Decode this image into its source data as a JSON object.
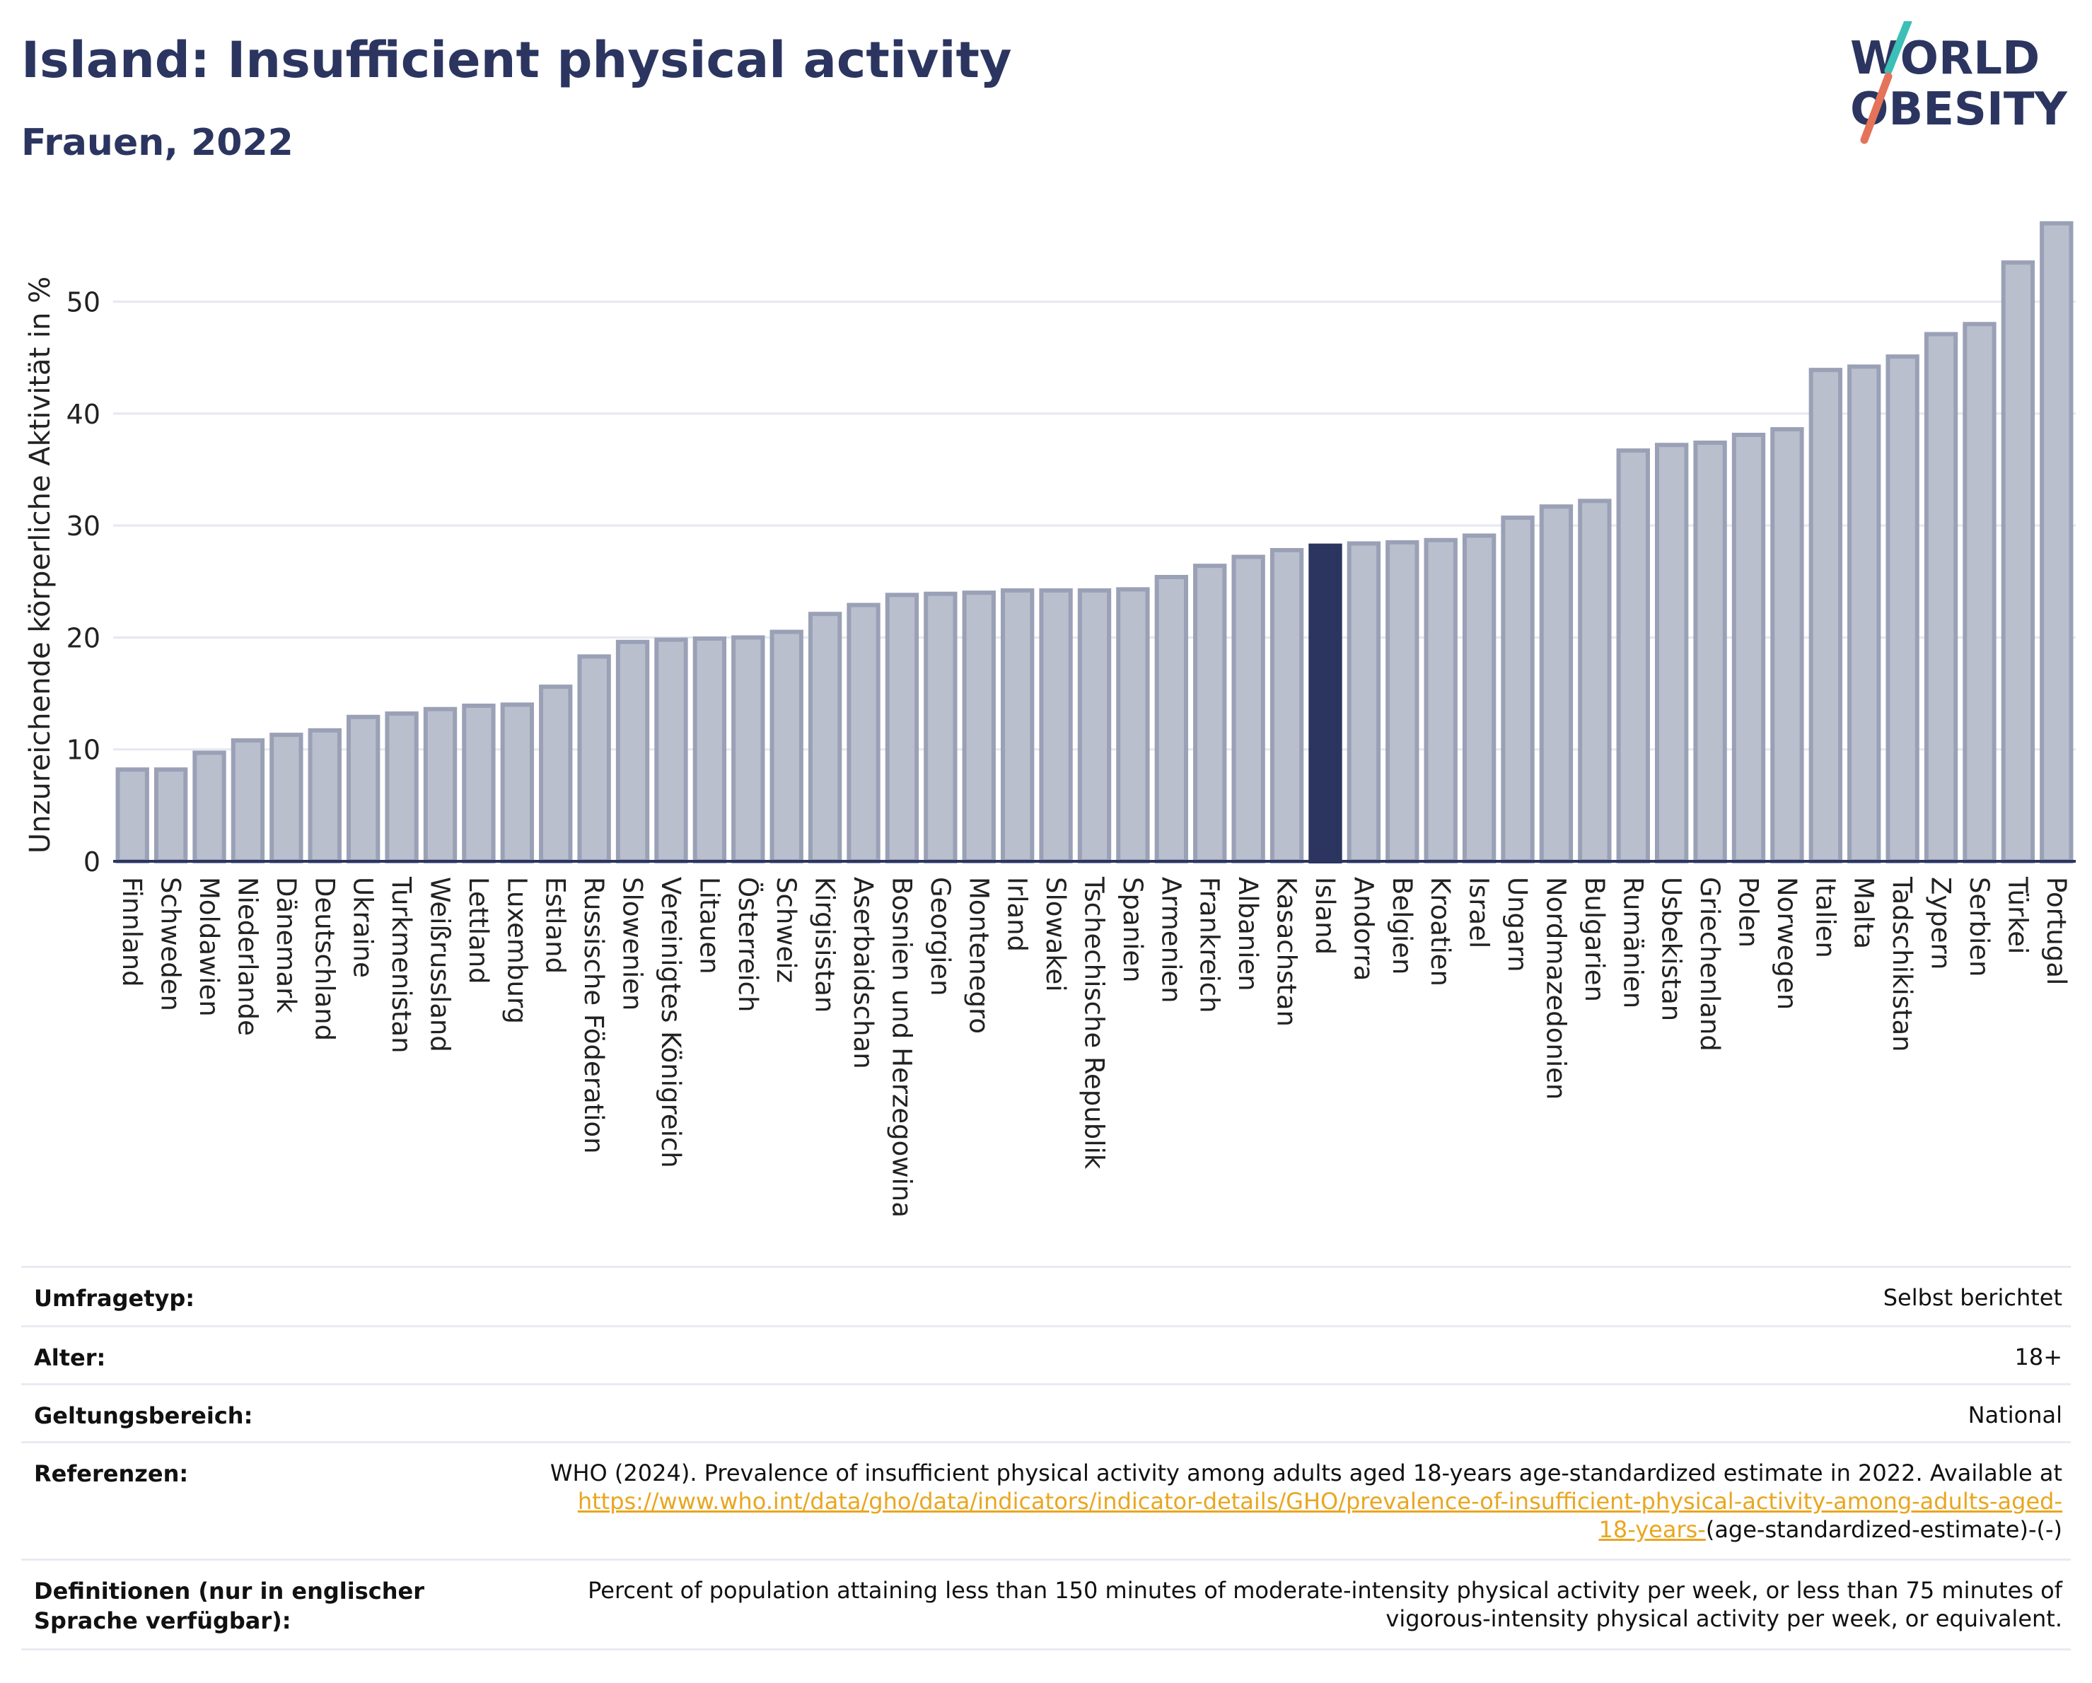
{
  "header": {
    "title": "Island: Insufficient physical activity",
    "subtitle": "Frauen, 2022"
  },
  "logo": {
    "line1": "WORLD",
    "line2": "OBESITY",
    "icon": "world-obesity-logo"
  },
  "colors": {
    "title": "#2b3560",
    "bar": "#b9bfcd",
    "bar_stroke": "#9aa1b6",
    "highlight": "#2b3560",
    "grid": "#e6e8ef",
    "link": "#e9a61f",
    "logo_slash_top": "#3bbfb6",
    "logo_slash_bottom": "#e4735a"
  },
  "chart_data": {
    "type": "bar",
    "ylabel": "Unzureichende körperliche Aktivität in %",
    "ylim": [
      0,
      58
    ],
    "yticks": [
      0,
      10,
      20,
      30,
      40,
      50
    ],
    "grid": true,
    "highlight": "Island",
    "categories": [
      "Finnland",
      "Schweden",
      "Moldawien",
      "Niederlande",
      "Dänemark",
      "Deutschland",
      "Ukraine",
      "Turkmenistan",
      "Weißrussland",
      "Lettland",
      "Luxemburg",
      "Estland",
      "Russische Föderation",
      "Slowenien",
      "Vereinigtes Königreich",
      "Litauen",
      "Österreich",
      "Schweiz",
      "Kirgisistan",
      "Aserbaidschan",
      "Bosnien und Herzegowina",
      "Georgien",
      "Montenegro",
      "Irland",
      "Slowakei",
      "Tschechische Republik",
      "Spanien",
      "Armenien",
      "Frankreich",
      "Albanien",
      "Kasachstan",
      "Island",
      "Andorra",
      "Belgien",
      "Kroatien",
      "Israel",
      "Ungarn",
      "Nordmazedonien",
      "Bulgarien",
      "Rumänien",
      "Usbekistan",
      "Griechenland",
      "Polen",
      "Norwegen",
      "Italien",
      "Malta",
      "Tadschikistan",
      "Zypern",
      "Serbien",
      "Türkei",
      "Portugal"
    ],
    "values": [
      8.2,
      8.2,
      9.7,
      10.8,
      11.3,
      11.7,
      12.9,
      13.2,
      13.6,
      13.9,
      14.0,
      15.6,
      18.3,
      19.6,
      19.8,
      19.9,
      20.0,
      20.5,
      22.1,
      22.9,
      23.8,
      23.9,
      24.0,
      24.2,
      24.2,
      24.2,
      24.3,
      25.4,
      26.4,
      27.2,
      27.8,
      28.2,
      28.4,
      28.5,
      28.7,
      29.1,
      30.7,
      31.7,
      32.2,
      36.7,
      37.2,
      37.4,
      38.1,
      38.6,
      43.9,
      44.2,
      45.1,
      47.1,
      48.0,
      53.5,
      57.0
    ]
  },
  "metadata": {
    "survey_type": {
      "label": "Umfragetyp:",
      "value": "Selbst berichtet"
    },
    "age": {
      "label": "Alter:",
      "value": "18+"
    },
    "scope": {
      "label": "Geltungsbereich:",
      "value": "National"
    },
    "references": {
      "label": "Referenzen:",
      "text": "WHO (2024). Prevalence of insufficient physical activity among adults aged 18-years age-standardized estimate in 2022. Available at",
      "link": "https://www.who.int/data/gho/data/indicators/indicator-details/GHO/prevalence-of-insufficient-physical-activity-among-adults-aged-18-years-",
      "suffix": "(age-standardized-estimate)-(-)"
    },
    "definitions": {
      "label": "Definitionen (nur in englischer Sprache verfügbar):",
      "value": "Percent of population attaining less than 150 minutes of moderate-intensity physical activity per week, or less than 75 minutes of vigorous-intensity physical activity per week, or equivalent."
    }
  }
}
